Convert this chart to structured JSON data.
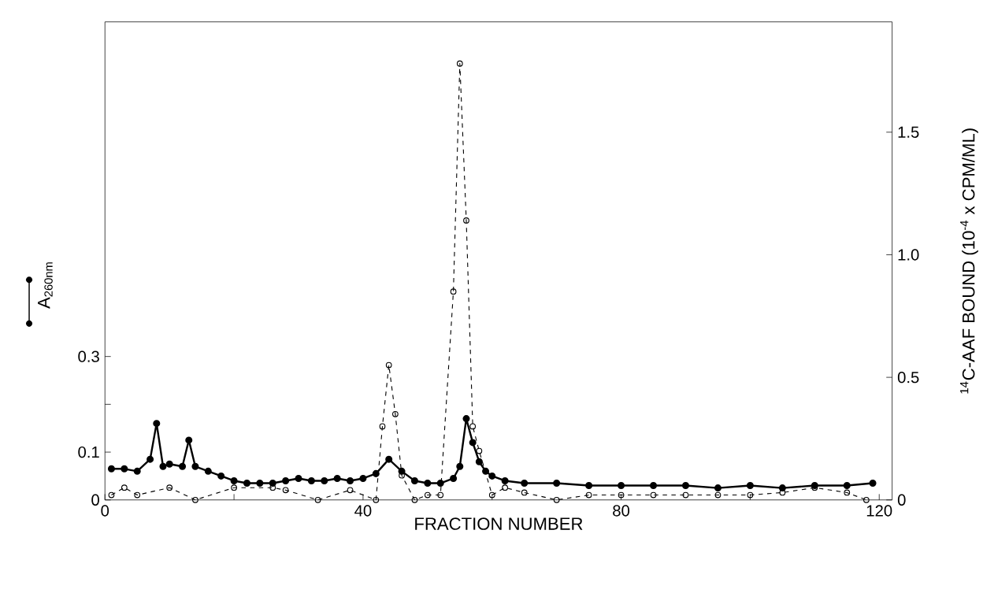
{
  "chart_data": {
    "type": "line",
    "xlabel": "FRACTION NUMBER",
    "ylabel": "A$_{260nm}$",
    "y2label": "$^{14}$C-AAF BOUND (10$^{-4}$ x CPM/ML)",
    "xlim": [
      0,
      122
    ],
    "ylim": [
      0,
      1.0
    ],
    "y2lim": [
      0,
      1.95
    ],
    "xticks": [
      0,
      {
        "value": 20,
        "label": null
      },
      40,
      {
        "value": 60,
        "label": null
      },
      80,
      {
        "value": 100,
        "label": null
      },
      120
    ],
    "yticks": [
      0,
      0.1,
      {
        "value": 0.2,
        "label": null
      },
      0.3
    ],
    "y2ticks": [
      0,
      0.5,
      {
        "value": 1.0,
        "label": "1.0"
      },
      1.5
    ],
    "series": [
      {
        "color": "#000000",
        "marker": "circle",
        "line_style": "solid",
        "x": [
          1,
          3,
          5,
          7,
          8,
          9,
          10,
          12,
          13,
          14,
          16,
          18,
          20,
          22,
          24,
          26,
          28,
          30,
          32,
          34,
          36,
          38,
          40,
          42,
          44,
          46,
          48,
          50,
          52,
          54,
          55,
          56,
          57,
          58,
          59,
          60,
          62,
          65,
          70,
          75,
          80,
          85,
          90,
          95,
          100,
          105,
          110,
          115,
          119
        ],
        "values": [
          0.065,
          0.065,
          0.06,
          0.085,
          0.16,
          0.07,
          0.075,
          0.07,
          0.125,
          0.07,
          0.06,
          0.05,
          0.04,
          0.035,
          0.035,
          0.035,
          0.04,
          0.045,
          0.04,
          0.04,
          0.045,
          0.04,
          0.045,
          0.055,
          0.085,
          0.06,
          0.04,
          0.035,
          0.035,
          0.045,
          0.07,
          0.17,
          0.12,
          0.08,
          0.06,
          0.05,
          0.04,
          0.035,
          0.035,
          0.03,
          0.03,
          0.03,
          0.03,
          0.025,
          0.03,
          0.025,
          0.03,
          0.03,
          0.035
        ]
      },
      {
        "color": "#000000",
        "marker": "circle",
        "line_style": "dashed",
        "axis": "y2",
        "x": [
          1,
          3,
          5,
          10,
          14,
          20,
          26,
          28,
          33,
          38,
          42,
          43,
          44,
          45,
          46,
          48,
          50,
          52,
          54,
          55,
          56,
          57,
          58,
          60,
          62,
          65,
          70,
          75,
          80,
          85,
          90,
          95,
          100,
          105,
          110,
          115,
          118
        ],
        "values": [
          0.02,
          0.05,
          0.02,
          0.05,
          0.0,
          0.05,
          0.05,
          0.04,
          0.0,
          0.04,
          0.0,
          0.3,
          0.55,
          0.35,
          0.1,
          0.0,
          0.02,
          0.02,
          0.85,
          1.78,
          1.14,
          0.3,
          0.2,
          0.02,
          0.05,
          0.03,
          0.0,
          0.02,
          0.02,
          0.02,
          0.02,
          0.02,
          0.02,
          0.03,
          0.05,
          0.03,
          0.0
        ]
      }
    ]
  }
}
